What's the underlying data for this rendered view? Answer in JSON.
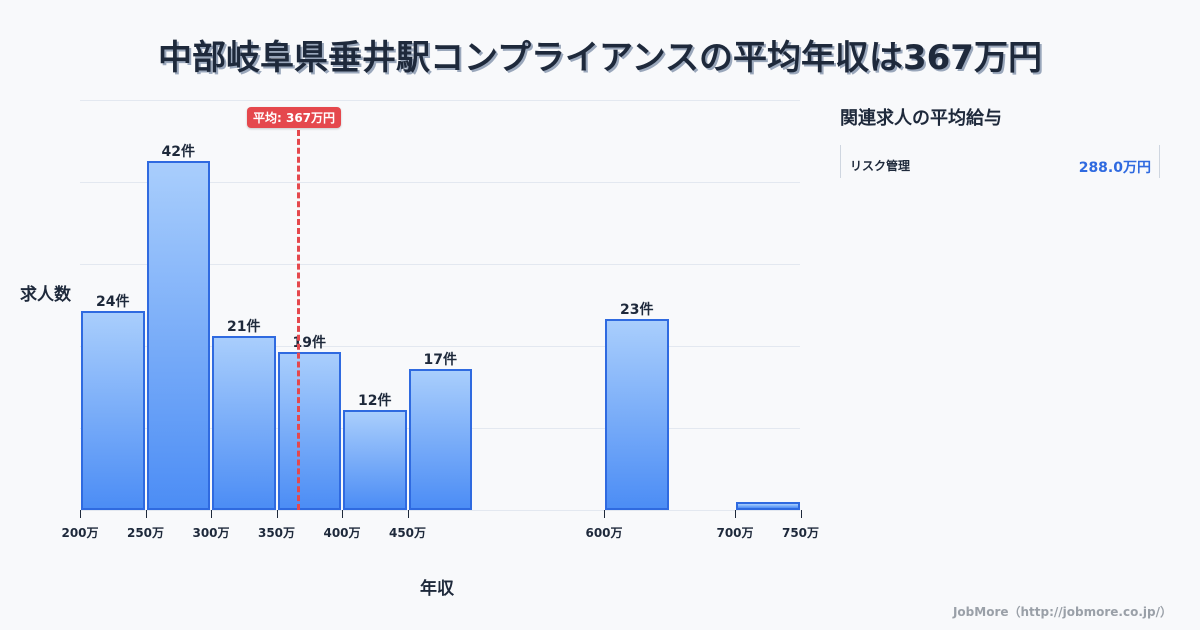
{
  "title": "中部岐阜県垂井駅コンプライアンスの平均年収は367万円",
  "chart_data": {
    "type": "bar",
    "title": "中部岐阜県垂井駅コンプライアンスの平均年収は367万円",
    "xlabel": "年収",
    "ylabel": "求人数",
    "categories": [
      "200万-250万",
      "250万-300万",
      "300万-350万",
      "350万-400万",
      "400万-450万",
      "450万-500万",
      "600万-650万",
      "700万-750万"
    ],
    "values": [
      24,
      42,
      21,
      19,
      12,
      17,
      23,
      1
    ],
    "value_labels": [
      "24件",
      "42件",
      "21件",
      "19件",
      "12件",
      "17件",
      "23件",
      ""
    ],
    "x_ticks": [
      "200万",
      "250万",
      "300万",
      "350万",
      "400万",
      "450万",
      "600万",
      "700万",
      "750万"
    ],
    "xlim": [
      200,
      750
    ],
    "ylim": [
      0,
      49.4
    ],
    "grid": true,
    "average": {
      "value": 367,
      "label": "平均: 367万円"
    },
    "bar_color": "#4c8df5",
    "bar_border_color": "#2f6ae0",
    "average_color": "#e5484d"
  },
  "side_panel": {
    "title": "関連求人の平均給与",
    "items": [
      {
        "label": "リスク管理",
        "value": "288.0万円"
      }
    ]
  },
  "footer": "JobMore（http://jobmore.co.jp/）"
}
